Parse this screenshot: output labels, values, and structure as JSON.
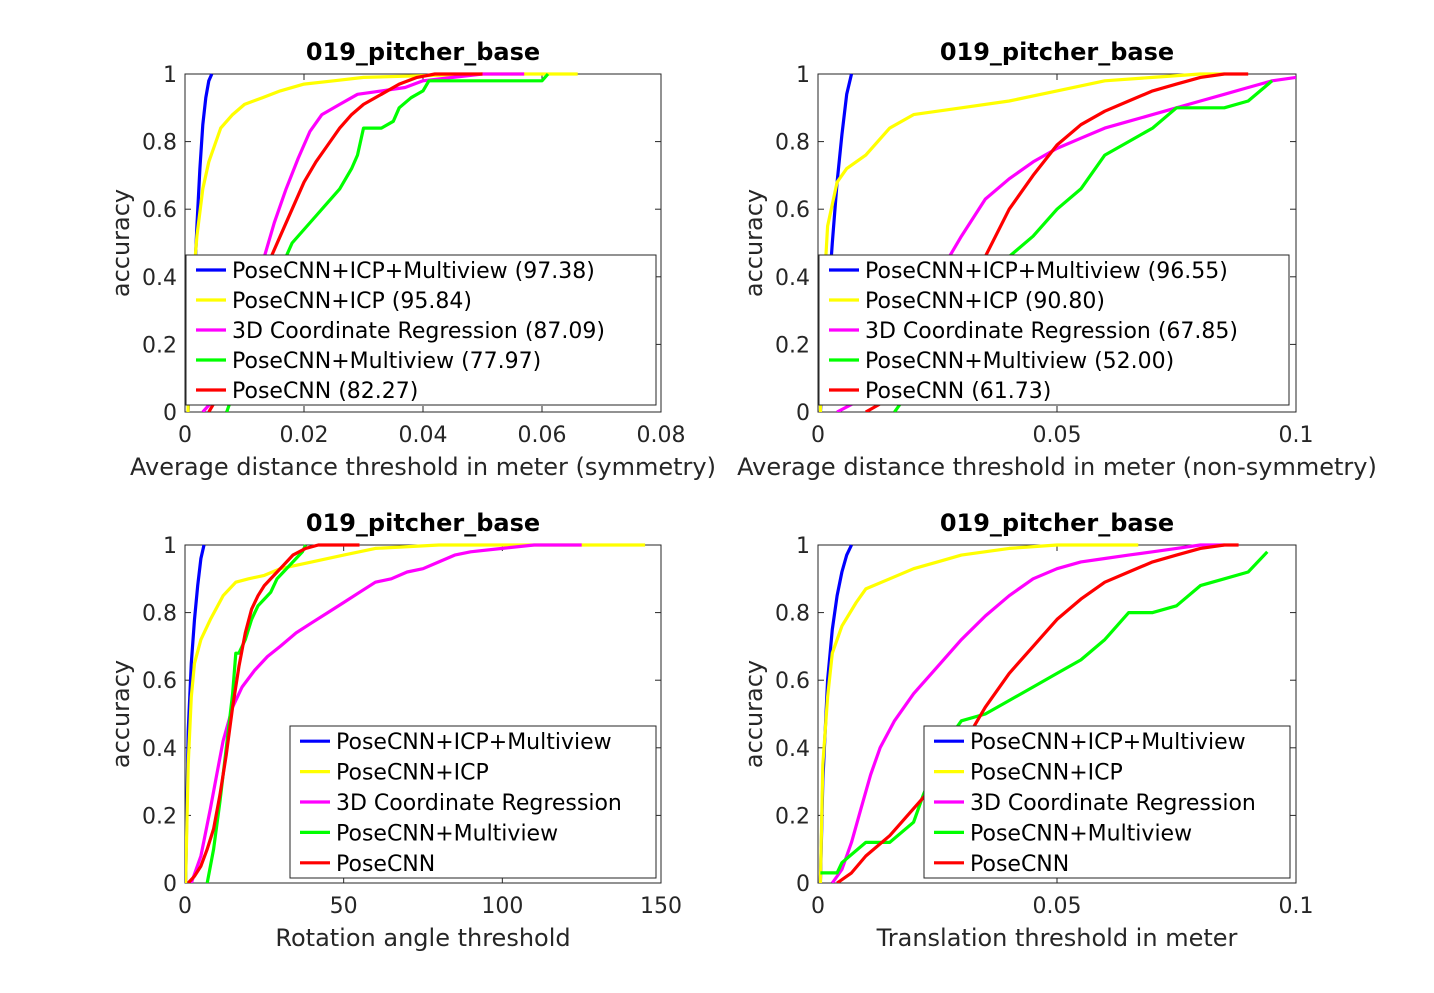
{
  "colors": {
    "blue": "#0000ff",
    "yellow": "#ffff00",
    "magenta": "#ff00ff",
    "green": "#00ff00",
    "red": "#ff0000",
    "axis": "#262626",
    "grid_ticks": "#262626"
  },
  "chart_data": [
    {
      "type": "line",
      "title": "019_pitcher_base",
      "xlabel": "Average distance threshold in meter (symmetry)",
      "ylabel": "accuracy",
      "xlim": [
        0,
        0.08
      ],
      "ylim": [
        0,
        1
      ],
      "xticks": [
        0,
        0.02,
        0.04,
        0.06,
        0.08
      ],
      "xtick_labels": [
        "0",
        "0.02",
        "0.04",
        "0.06",
        "0.08"
      ],
      "yticks": [
        0,
        0.2,
        0.4,
        0.6,
        0.8,
        1
      ],
      "ytick_labels": [
        "0",
        "0.2",
        "0.4",
        "0.6",
        "0.8",
        "1"
      ],
      "legend_position": "bottom-left",
      "series": [
        {
          "name": "PoseCNN+ICP+Multiview (97.38)",
          "color": "blue",
          "x": [
            0.0005,
            0.001,
            0.0015,
            0.002,
            0.0025,
            0.003,
            0.0035,
            0.004,
            0.0045
          ],
          "y": [
            0,
            0.15,
            0.35,
            0.55,
            0.72,
            0.85,
            0.93,
            0.98,
            1.0
          ]
        },
        {
          "name": "PoseCNN+ICP (95.84)",
          "color": "yellow",
          "x": [
            0.0005,
            0.001,
            0.002,
            0.003,
            0.004,
            0.006,
            0.008,
            0.01,
            0.013,
            0.016,
            0.02,
            0.025,
            0.03,
            0.04,
            0.05,
            0.06,
            0.066
          ],
          "y": [
            0,
            0.3,
            0.52,
            0.66,
            0.74,
            0.84,
            0.88,
            0.91,
            0.93,
            0.95,
            0.97,
            0.98,
            0.99,
            0.995,
            1.0,
            1.0,
            1.0
          ]
        },
        {
          "name": "3D Coordinate Regression (87.09)",
          "color": "magenta",
          "x": [
            0.003,
            0.005,
            0.007,
            0.009,
            0.011,
            0.013,
            0.015,
            0.017,
            0.019,
            0.021,
            0.023,
            0.026,
            0.029,
            0.033,
            0.037,
            0.04,
            0.045,
            0.05,
            0.057
          ],
          "y": [
            0,
            0.04,
            0.1,
            0.2,
            0.32,
            0.44,
            0.56,
            0.66,
            0.75,
            0.83,
            0.88,
            0.91,
            0.94,
            0.95,
            0.96,
            0.98,
            0.99,
            1.0,
            1.0
          ]
        },
        {
          "name": "PoseCNN+Multiview (77.97)",
          "color": "green",
          "x": [
            0.007,
            0.01,
            0.013,
            0.016,
            0.018,
            0.02,
            0.022,
            0.024,
            0.026,
            0.028,
            0.029,
            0.03,
            0.033,
            0.035,
            0.036,
            0.038,
            0.04,
            0.041,
            0.045,
            0.05,
            0.055,
            0.06,
            0.061
          ],
          "y": [
            0,
            0.15,
            0.3,
            0.42,
            0.5,
            0.54,
            0.58,
            0.62,
            0.66,
            0.72,
            0.76,
            0.84,
            0.84,
            0.86,
            0.9,
            0.93,
            0.95,
            0.98,
            0.98,
            0.98,
            0.98,
            0.98,
            1.0
          ]
        },
        {
          "name": "PoseCNN (82.27)",
          "color": "red",
          "x": [
            0.004,
            0.006,
            0.008,
            0.01,
            0.012,
            0.014,
            0.016,
            0.018,
            0.02,
            0.022,
            0.024,
            0.026,
            0.028,
            0.03,
            0.033,
            0.036,
            0.039,
            0.042,
            0.046,
            0.05
          ],
          "y": [
            0,
            0.06,
            0.14,
            0.24,
            0.34,
            0.44,
            0.52,
            0.6,
            0.68,
            0.74,
            0.79,
            0.84,
            0.88,
            0.91,
            0.94,
            0.97,
            0.99,
            1.0,
            1.0,
            1.0
          ]
        }
      ]
    },
    {
      "type": "line",
      "title": "019_pitcher_base",
      "xlabel": "Average distance threshold in meter (non-symmetry)",
      "ylabel": "accuracy",
      "xlim": [
        0,
        0.1
      ],
      "ylim": [
        0,
        1
      ],
      "xticks": [
        0,
        0.05,
        0.1
      ],
      "xtick_labels": [
        "0",
        "0.05",
        "0.1"
      ],
      "yticks": [
        0,
        0.2,
        0.4,
        0.6,
        0.8,
        1
      ],
      "ytick_labels": [
        "0",
        "0.2",
        "0.4",
        "0.6",
        "0.8",
        "1"
      ],
      "legend_position": "bottom-left",
      "series": [
        {
          "name": "PoseCNN+ICP+Multiview (96.55)",
          "color": "blue",
          "x": [
            0.0005,
            0.001,
            0.002,
            0.003,
            0.004,
            0.005,
            0.006,
            0.007
          ],
          "y": [
            0,
            0.1,
            0.3,
            0.5,
            0.68,
            0.82,
            0.94,
            1.0
          ]
        },
        {
          "name": "PoseCNN+ICP (90.80)",
          "color": "yellow",
          "x": [
            0.0005,
            0.001,
            0.002,
            0.004,
            0.006,
            0.01,
            0.015,
            0.02,
            0.03,
            0.04,
            0.05,
            0.06,
            0.07,
            0.08,
            0.085
          ],
          "y": [
            0,
            0.3,
            0.55,
            0.68,
            0.72,
            0.76,
            0.84,
            0.88,
            0.9,
            0.92,
            0.95,
            0.98,
            0.99,
            1.0,
            1.0
          ]
        },
        {
          "name": "3D Coordinate Regression (67.85)",
          "color": "magenta",
          "x": [
            0.004,
            0.008,
            0.012,
            0.016,
            0.02,
            0.025,
            0.03,
            0.035,
            0.04,
            0.045,
            0.05,
            0.055,
            0.06,
            0.065,
            0.07,
            0.075,
            0.08,
            0.085,
            0.09,
            0.095,
            0.1
          ],
          "y": [
            0,
            0.03,
            0.08,
            0.15,
            0.26,
            0.4,
            0.52,
            0.63,
            0.69,
            0.74,
            0.78,
            0.81,
            0.84,
            0.86,
            0.88,
            0.9,
            0.92,
            0.94,
            0.96,
            0.98,
            0.99
          ]
        },
        {
          "name": "PoseCNN+Multiview (52.00)",
          "color": "green",
          "x": [
            0.016,
            0.02,
            0.025,
            0.03,
            0.035,
            0.04,
            0.045,
            0.05,
            0.055,
            0.06,
            0.065,
            0.07,
            0.075,
            0.08,
            0.085,
            0.09,
            0.095
          ],
          "y": [
            0,
            0.08,
            0.18,
            0.28,
            0.38,
            0.46,
            0.52,
            0.6,
            0.66,
            0.76,
            0.8,
            0.84,
            0.9,
            0.9,
            0.9,
            0.92,
            0.98
          ]
        },
        {
          "name": "PoseCNN (61.73)",
          "color": "red",
          "x": [
            0.01,
            0.015,
            0.02,
            0.025,
            0.03,
            0.035,
            0.04,
            0.045,
            0.05,
            0.055,
            0.06,
            0.065,
            0.07,
            0.075,
            0.08,
            0.085,
            0.09
          ],
          "y": [
            0,
            0.04,
            0.1,
            0.2,
            0.32,
            0.46,
            0.6,
            0.7,
            0.79,
            0.85,
            0.89,
            0.92,
            0.95,
            0.97,
            0.99,
            1.0,
            1.0
          ]
        }
      ]
    },
    {
      "type": "line",
      "title": "019_pitcher_base",
      "xlabel": "Rotation angle threshold",
      "ylabel": "accuracy",
      "xlim": [
        0,
        150
      ],
      "ylim": [
        0,
        1
      ],
      "xticks": [
        0,
        50,
        100,
        150
      ],
      "xtick_labels": [
        "0",
        "50",
        "100",
        "150"
      ],
      "yticks": [
        0,
        0.2,
        0.4,
        0.6,
        0.8,
        1
      ],
      "ytick_labels": [
        "0",
        "0.2",
        "0.4",
        "0.6",
        "0.8",
        "1"
      ],
      "legend_position": "bottom-right",
      "series": [
        {
          "name": "PoseCNN+ICP+Multiview",
          "color": "blue",
          "x": [
            0.2,
            1,
            2,
            3,
            4,
            5,
            6
          ],
          "y": [
            0,
            0.45,
            0.65,
            0.78,
            0.88,
            0.96,
            1.0
          ]
        },
        {
          "name": "PoseCNN+ICP",
          "color": "yellow",
          "x": [
            0.2,
            1,
            2,
            3,
            5,
            8,
            12,
            16,
            20,
            25,
            30,
            40,
            50,
            60,
            80,
            100,
            120,
            145
          ],
          "y": [
            0,
            0.35,
            0.55,
            0.65,
            0.72,
            0.78,
            0.85,
            0.89,
            0.9,
            0.91,
            0.93,
            0.95,
            0.97,
            0.99,
            1.0,
            1.0,
            1.0,
            1.0
          ]
        },
        {
          "name": "3D Coordinate Regression",
          "color": "magenta",
          "x": [
            2,
            5,
            8,
            10,
            12,
            15,
            18,
            22,
            26,
            30,
            35,
            40,
            45,
            50,
            55,
            60,
            65,
            70,
            75,
            80,
            85,
            90,
            100,
            110,
            125
          ],
          "y": [
            0,
            0.08,
            0.22,
            0.32,
            0.42,
            0.52,
            0.58,
            0.63,
            0.67,
            0.7,
            0.74,
            0.77,
            0.8,
            0.83,
            0.86,
            0.89,
            0.9,
            0.92,
            0.93,
            0.95,
            0.97,
            0.98,
            0.99,
            1.0,
            1.0
          ]
        },
        {
          "name": "PoseCNN+Multiview",
          "color": "green",
          "x": [
            7,
            9,
            11,
            13,
            15,
            16,
            17,
            19,
            21,
            23,
            25,
            27,
            29,
            31,
            33,
            35,
            37,
            38
          ],
          "y": [
            0,
            0.1,
            0.24,
            0.4,
            0.56,
            0.68,
            0.68,
            0.72,
            0.78,
            0.82,
            0.84,
            0.86,
            0.9,
            0.92,
            0.94,
            0.96,
            0.98,
            1.0
          ]
        },
        {
          "name": "PoseCNN",
          "color": "red",
          "x": [
            1,
            3,
            5,
            7,
            9,
            11,
            13,
            15,
            17,
            19,
            21,
            23,
            25,
            28,
            31,
            34,
            38,
            42,
            48,
            55
          ],
          "y": [
            0,
            0.02,
            0.05,
            0.1,
            0.16,
            0.26,
            0.38,
            0.52,
            0.64,
            0.74,
            0.81,
            0.85,
            0.88,
            0.91,
            0.94,
            0.97,
            0.99,
            1.0,
            1.0,
            1.0
          ]
        }
      ]
    },
    {
      "type": "line",
      "title": "019_pitcher_base",
      "xlabel": "Translation threshold in meter",
      "ylabel": "accuracy",
      "xlim": [
        0,
        0.1
      ],
      "ylim": [
        0,
        1
      ],
      "xticks": [
        0,
        0.05,
        0.1
      ],
      "xtick_labels": [
        "0",
        "0.05",
        "0.1"
      ],
      "yticks": [
        0,
        0.2,
        0.4,
        0.6,
        0.8,
        1
      ],
      "ytick_labels": [
        "0",
        "0.2",
        "0.4",
        "0.6",
        "0.8",
        "1"
      ],
      "legend_position": "bottom-right",
      "series": [
        {
          "name": "PoseCNN+ICP+Multiview",
          "color": "blue",
          "x": [
            0.0005,
            0.001,
            0.002,
            0.003,
            0.004,
            0.005,
            0.006,
            0.007
          ],
          "y": [
            0,
            0.3,
            0.6,
            0.75,
            0.85,
            0.92,
            0.97,
            1.0
          ]
        },
        {
          "name": "PoseCNN+ICP",
          "color": "yellow",
          "x": [
            0.0005,
            0.001,
            0.002,
            0.003,
            0.005,
            0.008,
            0.01,
            0.015,
            0.02,
            0.025,
            0.03,
            0.04,
            0.05,
            0.06,
            0.067
          ],
          "y": [
            0,
            0.35,
            0.55,
            0.68,
            0.76,
            0.83,
            0.87,
            0.9,
            0.93,
            0.95,
            0.97,
            0.99,
            1.0,
            1.0,
            1.0
          ]
        },
        {
          "name": "3D Coordinate Regression",
          "color": "magenta",
          "x": [
            0.003,
            0.005,
            0.007,
            0.009,
            0.011,
            0.013,
            0.016,
            0.02,
            0.025,
            0.03,
            0.035,
            0.04,
            0.045,
            0.05,
            0.055,
            0.06,
            0.065,
            0.07,
            0.075,
            0.08,
            0.085
          ],
          "y": [
            0,
            0.04,
            0.12,
            0.22,
            0.32,
            0.4,
            0.48,
            0.56,
            0.64,
            0.72,
            0.79,
            0.85,
            0.9,
            0.93,
            0.95,
            0.96,
            0.97,
            0.98,
            0.99,
            1.0,
            1.0
          ]
        },
        {
          "name": "PoseCNN+Multiview",
          "color": "green",
          "x": [
            0.0005,
            0.004,
            0.005,
            0.01,
            0.015,
            0.02,
            0.022,
            0.025,
            0.028,
            0.03,
            0.035,
            0.04,
            0.045,
            0.05,
            0.055,
            0.06,
            0.065,
            0.07,
            0.075,
            0.08,
            0.085,
            0.09,
            0.094
          ],
          "y": [
            0.03,
            0.03,
            0.06,
            0.12,
            0.12,
            0.18,
            0.26,
            0.36,
            0.44,
            0.48,
            0.5,
            0.54,
            0.58,
            0.62,
            0.66,
            0.72,
            0.8,
            0.8,
            0.82,
            0.88,
            0.9,
            0.92,
            0.98
          ]
        },
        {
          "name": "PoseCNN",
          "color": "red",
          "x": [
            0.004,
            0.007,
            0.01,
            0.015,
            0.02,
            0.025,
            0.03,
            0.035,
            0.04,
            0.045,
            0.05,
            0.055,
            0.06,
            0.065,
            0.07,
            0.075,
            0.08,
            0.085,
            0.088
          ],
          "y": [
            0,
            0.03,
            0.08,
            0.14,
            0.22,
            0.3,
            0.4,
            0.52,
            0.62,
            0.7,
            0.78,
            0.84,
            0.89,
            0.92,
            0.95,
            0.97,
            0.99,
            1.0,
            1.0
          ]
        }
      ]
    }
  ]
}
